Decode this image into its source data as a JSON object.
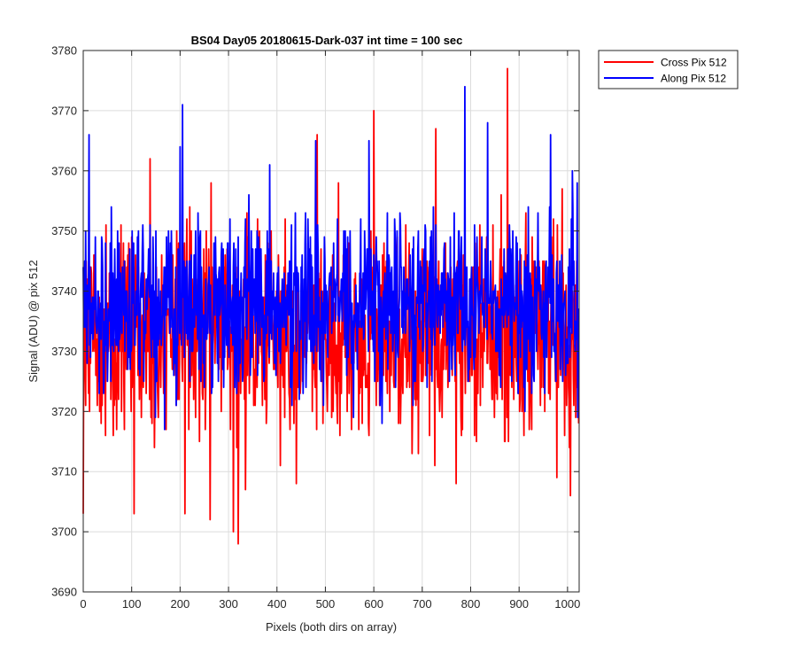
{
  "chart_data": {
    "type": "line",
    "title": "BS04 Day05 20180615-Dark-037 int time = 100 sec",
    "xlabel": "Pixels (both dirs on array)",
    "ylabel": "Signal (ADU) @ pix 512",
    "xlim": [
      0,
      1024
    ],
    "ylim": [
      3690,
      3780
    ],
    "xticks": [
      0,
      100,
      200,
      300,
      400,
      500,
      600,
      700,
      800,
      900,
      1000
    ],
    "yticks": [
      3690,
      3700,
      3710,
      3720,
      3730,
      3740,
      3750,
      3760,
      3770,
      3780
    ],
    "grid": true,
    "legend_position": "outside-top-right",
    "series": [
      {
        "name": "Cross Pix 512",
        "color": "#ff0000",
        "description_stats": {
          "points": 1024,
          "mean": 3733,
          "sd": 9,
          "min": 3698,
          "max": 3777
        },
        "highlight_points": [
          {
            "x": 0,
            "y": 3703
          },
          {
            "x": 105,
            "y": 3703
          },
          {
            "x": 138,
            "y": 3762
          },
          {
            "x": 210,
            "y": 3703
          },
          {
            "x": 262,
            "y": 3702
          },
          {
            "x": 264,
            "y": 3758
          },
          {
            "x": 310,
            "y": 3700
          },
          {
            "x": 320,
            "y": 3698
          },
          {
            "x": 440,
            "y": 3708
          },
          {
            "x": 483,
            "y": 3766
          },
          {
            "x": 600,
            "y": 3770
          },
          {
            "x": 728,
            "y": 3767
          },
          {
            "x": 770,
            "y": 3708
          },
          {
            "x": 876,
            "y": 3777
          },
          {
            "x": 1006,
            "y": 3706
          }
        ]
      },
      {
        "name": "Along Pix 512",
        "color": "#0000ff",
        "description_stats": {
          "points": 1024,
          "mean": 3738,
          "sd": 7,
          "min": 3710,
          "max": 3774
        },
        "highlight_points": [
          {
            "x": 12,
            "y": 3766
          },
          {
            "x": 205,
            "y": 3771
          },
          {
            "x": 200,
            "y": 3764
          },
          {
            "x": 480,
            "y": 3765
          },
          {
            "x": 590,
            "y": 3765
          },
          {
            "x": 788,
            "y": 3774
          },
          {
            "x": 835,
            "y": 3768
          },
          {
            "x": 965,
            "y": 3766
          },
          {
            "x": 1010,
            "y": 3760
          }
        ]
      }
    ]
  }
}
